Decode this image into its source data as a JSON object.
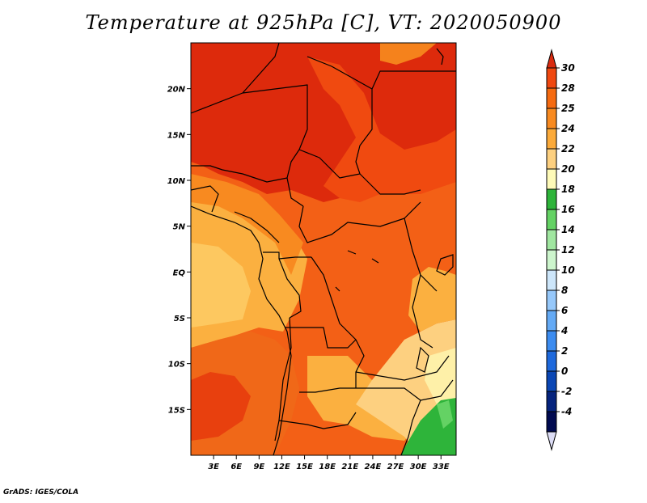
{
  "title": "Temperature at 925hPa [C], VT: 2020050900",
  "credit": "GrADS: IGES/COLA",
  "map": {
    "lat_range": [
      -20,
      25
    ],
    "lon_range": [
      0,
      35
    ],
    "lat_ticks": [
      {
        "value": 20,
        "label": "20N"
      },
      {
        "value": 15,
        "label": "15N"
      },
      {
        "value": 10,
        "label": "10N"
      },
      {
        "value": 5,
        "label": "5N"
      },
      {
        "value": 0,
        "label": "EQ"
      },
      {
        "value": -5,
        "label": "5S"
      },
      {
        "value": -10,
        "label": "10S"
      },
      {
        "value": -15,
        "label": "15S"
      }
    ],
    "lon_ticks": [
      {
        "value": 3,
        "label": "3E"
      },
      {
        "value": 6,
        "label": "6E"
      },
      {
        "value": 9,
        "label": "9E"
      },
      {
        "value": 12,
        "label": "12E"
      },
      {
        "value": 15,
        "label": "15E"
      },
      {
        "value": 18,
        "label": "18E"
      },
      {
        "value": 21,
        "label": "21E"
      },
      {
        "value": 24,
        "label": "24E"
      },
      {
        "value": 27,
        "label": "27E"
      },
      {
        "value": 30,
        "label": "30E"
      },
      {
        "value": 33,
        "label": "33E"
      }
    ]
  },
  "colorbar": {
    "levels": [
      "30",
      "28",
      "25",
      "24",
      "22",
      "20",
      "18",
      "16",
      "14",
      "12",
      "10",
      "8",
      "6",
      "4",
      "2",
      "0",
      "-2",
      "-4"
    ],
    "colors": [
      "#d92b10",
      "#f04810",
      "#f56a10",
      "#f88a20",
      "#fbaa3a",
      "#fdd080",
      "#fefab8",
      "#2eb43a",
      "#64d264",
      "#a0e6a0",
      "#cdf5cd",
      "#cde6fa",
      "#96c8fa",
      "#64aaf5",
      "#3c8cf0",
      "#1e69dc",
      "#0a46b4",
      "#05237d",
      "#000a50",
      "#dcdcf5"
    ]
  },
  "regions": [
    {
      "name": "sahara-hot-region",
      "color": "#dd2a0c"
    },
    {
      "name": "north-orange-band",
      "color": "#f05010"
    },
    {
      "name": "central-basin",
      "color": "#f06818"
    },
    {
      "name": "coastal-band",
      "color": "#fbb040"
    },
    {
      "name": "southern-warm",
      "color": "#f06818"
    },
    {
      "name": "southeast-cool",
      "color": "#fdd080"
    },
    {
      "name": "southeast-green",
      "color": "#2eb43a"
    }
  ]
}
